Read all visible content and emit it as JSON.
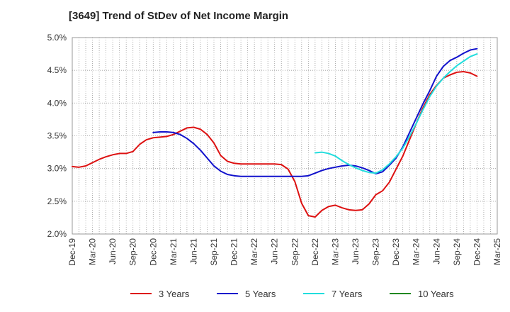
{
  "chart_data": {
    "type": "line",
    "title": "[3649]  Trend of StDev of Net Income Margin",
    "xlabel": "",
    "ylabel": "",
    "x_start": "2019-12",
    "x_end": "2025-03",
    "x_ticks": [
      "Dec-19",
      "Mar-20",
      "Jun-20",
      "Sep-20",
      "Dec-20",
      "Mar-21",
      "Jun-21",
      "Sep-21",
      "Dec-21",
      "Mar-22",
      "Jun-22",
      "Sep-22",
      "Dec-22",
      "Mar-23",
      "Jun-23",
      "Sep-23",
      "Dec-23",
      "Mar-24",
      "Jun-24",
      "Sep-24",
      "Dec-24",
      "Mar-25"
    ],
    "y_ticks": [
      "2.0%",
      "2.5%",
      "3.0%",
      "3.5%",
      "4.0%",
      "4.5%",
      "5.0%"
    ],
    "ylim": [
      2.0,
      5.0
    ],
    "grid": true,
    "legend_position": "bottom",
    "series": [
      {
        "name": "3 Years",
        "color": "#dd1111",
        "points": [
          [
            "2019-12",
            3.03
          ],
          [
            "2020-01",
            3.02
          ],
          [
            "2020-02",
            3.04
          ],
          [
            "2020-03",
            3.09
          ],
          [
            "2020-04",
            3.14
          ],
          [
            "2020-05",
            3.18
          ],
          [
            "2020-06",
            3.21
          ],
          [
            "2020-07",
            3.23
          ],
          [
            "2020-08",
            3.23
          ],
          [
            "2020-09",
            3.26
          ],
          [
            "2020-10",
            3.37
          ],
          [
            "2020-11",
            3.44
          ],
          [
            "2020-12",
            3.47
          ],
          [
            "2021-01",
            3.48
          ],
          [
            "2021-02",
            3.49
          ],
          [
            "2021-03",
            3.52
          ],
          [
            "2021-04",
            3.57
          ],
          [
            "2021-05",
            3.62
          ],
          [
            "2021-06",
            3.63
          ],
          [
            "2021-07",
            3.6
          ],
          [
            "2021-08",
            3.52
          ],
          [
            "2021-09",
            3.39
          ],
          [
            "2021-10",
            3.2
          ],
          [
            "2021-11",
            3.11
          ],
          [
            "2021-12",
            3.08
          ],
          [
            "2022-01",
            3.07
          ],
          [
            "2022-02",
            3.07
          ],
          [
            "2022-03",
            3.07
          ],
          [
            "2022-04",
            3.07
          ],
          [
            "2022-05",
            3.07
          ],
          [
            "2022-06",
            3.07
          ],
          [
            "2022-07",
            3.06
          ],
          [
            "2022-08",
            2.99
          ],
          [
            "2022-09",
            2.8
          ],
          [
            "2022-10",
            2.47
          ],
          [
            "2022-11",
            2.28
          ],
          [
            "2022-12",
            2.26
          ],
          [
            "2023-01",
            2.36
          ],
          [
            "2023-02",
            2.42
          ],
          [
            "2023-03",
            2.44
          ],
          [
            "2023-04",
            2.4
          ],
          [
            "2023-05",
            2.37
          ],
          [
            "2023-06",
            2.36
          ],
          [
            "2023-07",
            2.37
          ],
          [
            "2023-08",
            2.46
          ],
          [
            "2023-09",
            2.6
          ],
          [
            "2023-10",
            2.66
          ],
          [
            "2023-11",
            2.79
          ],
          [
            "2023-12",
            2.99
          ],
          [
            "2024-01",
            3.19
          ],
          [
            "2024-02",
            3.44
          ],
          [
            "2024-03",
            3.69
          ],
          [
            "2024-04",
            3.93
          ],
          [
            "2024-05",
            4.13
          ],
          [
            "2024-06",
            4.27
          ],
          [
            "2024-07",
            4.38
          ],
          [
            "2024-08",
            4.43
          ],
          [
            "2024-09",
            4.47
          ],
          [
            "2024-10",
            4.48
          ],
          [
            "2024-11",
            4.46
          ],
          [
            "2024-12",
            4.41
          ]
        ]
      },
      {
        "name": "5 Years",
        "color": "#1111cc",
        "points": [
          [
            "2020-12",
            3.55
          ],
          [
            "2021-01",
            3.56
          ],
          [
            "2021-02",
            3.56
          ],
          [
            "2021-03",
            3.55
          ],
          [
            "2021-04",
            3.52
          ],
          [
            "2021-05",
            3.46
          ],
          [
            "2021-06",
            3.38
          ],
          [
            "2021-07",
            3.28
          ],
          [
            "2021-08",
            3.16
          ],
          [
            "2021-09",
            3.04
          ],
          [
            "2021-10",
            2.96
          ],
          [
            "2021-11",
            2.91
          ],
          [
            "2021-12",
            2.89
          ],
          [
            "2022-01",
            2.88
          ],
          [
            "2022-02",
            2.88
          ],
          [
            "2022-03",
            2.88
          ],
          [
            "2022-04",
            2.88
          ],
          [
            "2022-05",
            2.88
          ],
          [
            "2022-06",
            2.88
          ],
          [
            "2022-07",
            2.88
          ],
          [
            "2022-08",
            2.88
          ],
          [
            "2022-09",
            2.88
          ],
          [
            "2022-10",
            2.88
          ],
          [
            "2022-11",
            2.89
          ],
          [
            "2022-12",
            2.93
          ],
          [
            "2023-01",
            2.97
          ],
          [
            "2023-02",
            3.0
          ],
          [
            "2023-03",
            3.02
          ],
          [
            "2023-04",
            3.04
          ],
          [
            "2023-05",
            3.05
          ],
          [
            "2023-06",
            3.04
          ],
          [
            "2023-07",
            3.01
          ],
          [
            "2023-08",
            2.97
          ],
          [
            "2023-09",
            2.92
          ],
          [
            "2023-10",
            2.95
          ],
          [
            "2023-11",
            3.05
          ],
          [
            "2023-12",
            3.16
          ],
          [
            "2024-01",
            3.33
          ],
          [
            "2024-02",
            3.55
          ],
          [
            "2024-03",
            3.77
          ],
          [
            "2024-04",
            3.99
          ],
          [
            "2024-05",
            4.19
          ],
          [
            "2024-06",
            4.41
          ],
          [
            "2024-07",
            4.56
          ],
          [
            "2024-08",
            4.65
          ],
          [
            "2024-09",
            4.7
          ],
          [
            "2024-10",
            4.76
          ],
          [
            "2024-11",
            4.81
          ],
          [
            "2024-12",
            4.83
          ]
        ]
      },
      {
        "name": "7 Years",
        "color": "#22dddd",
        "points": [
          [
            "2022-12",
            3.24
          ],
          [
            "2023-01",
            3.25
          ],
          [
            "2023-02",
            3.23
          ],
          [
            "2023-03",
            3.19
          ],
          [
            "2023-04",
            3.12
          ],
          [
            "2023-05",
            3.06
          ],
          [
            "2023-06",
            3.01
          ],
          [
            "2023-07",
            2.97
          ],
          [
            "2023-08",
            2.94
          ],
          [
            "2023-09",
            2.93
          ],
          [
            "2023-10",
            2.98
          ],
          [
            "2023-11",
            3.07
          ],
          [
            "2023-12",
            3.18
          ],
          [
            "2024-01",
            3.31
          ],
          [
            "2024-02",
            3.49
          ],
          [
            "2024-03",
            3.69
          ],
          [
            "2024-04",
            3.9
          ],
          [
            "2024-05",
            4.1
          ],
          [
            "2024-06",
            4.26
          ],
          [
            "2024-07",
            4.38
          ],
          [
            "2024-08",
            4.48
          ],
          [
            "2024-09",
            4.57
          ],
          [
            "2024-10",
            4.64
          ],
          [
            "2024-11",
            4.71
          ],
          [
            "2024-12",
            4.75
          ]
        ]
      },
      {
        "name": "10 Years",
        "color": "#228822",
        "points": []
      }
    ]
  }
}
